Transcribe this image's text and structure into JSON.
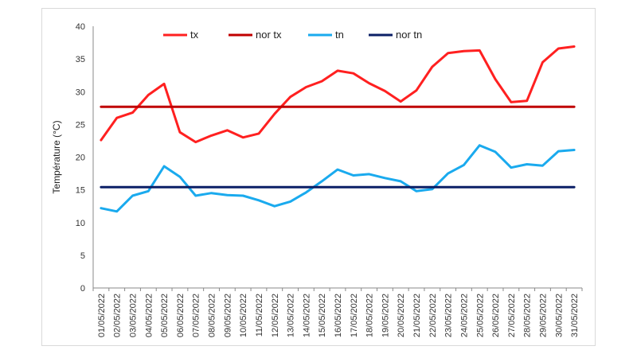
{
  "chart_data": {
    "type": "line",
    "ylabel": "Température (°C)",
    "ylim": [
      0,
      40
    ],
    "yticks": [
      0,
      5,
      10,
      15,
      20,
      25,
      30,
      35,
      40
    ],
    "grid": false,
    "legend_position": "top",
    "categories": [
      "01/05/2022",
      "02/05/2022",
      "03/05/2022",
      "04/05/2022",
      "05/05/2022",
      "06/05/2022",
      "07/05/2022",
      "08/05/2022",
      "09/05/2022",
      "10/05/2022",
      "11/05/2022",
      "12/05/2022",
      "13/05/2022",
      "14/05/2022",
      "15/05/2022",
      "16/05/2022",
      "17/05/2022",
      "18/05/2022",
      "19/05/2022",
      "20/05/2022",
      "21/05/2022",
      "22/05/2022",
      "23/05/2022",
      "24/05/2022",
      "25/05/2022",
      "26/05/2022",
      "27/05/2022",
      "28/05/2022",
      "29/05/2022",
      "30/05/2022",
      "31/05/2022"
    ],
    "series": [
      {
        "name": "tx",
        "color": "#ff2020",
        "values": [
          22.6,
          26.0,
          26.8,
          29.5,
          31.2,
          23.8,
          22.3,
          23.3,
          24.1,
          23.0,
          23.6,
          26.6,
          29.2,
          30.7,
          31.6,
          33.2,
          32.8,
          31.3,
          30.1,
          28.5,
          30.2,
          33.8,
          35.9,
          36.2,
          36.3,
          31.9,
          28.4,
          28.6,
          34.5,
          36.6,
          36.9
        ]
      },
      {
        "name": "nor tx",
        "color": "#c00000",
        "values": [
          27.7,
          27.7,
          27.7,
          27.7,
          27.7,
          27.7,
          27.7,
          27.7,
          27.7,
          27.7,
          27.7,
          27.7,
          27.7,
          27.7,
          27.7,
          27.7,
          27.7,
          27.7,
          27.7,
          27.7,
          27.7,
          27.7,
          27.7,
          27.7,
          27.7,
          27.7,
          27.7,
          27.7,
          27.7,
          27.7,
          27.7
        ]
      },
      {
        "name": "tn",
        "color": "#1aaaee",
        "values": [
          12.2,
          11.7,
          14.1,
          14.8,
          18.6,
          17.0,
          14.1,
          14.5,
          14.2,
          14.1,
          13.4,
          12.5,
          13.2,
          14.6,
          16.3,
          18.1,
          17.2,
          17.4,
          16.8,
          16.3,
          14.8,
          15.1,
          17.5,
          18.8,
          21.8,
          20.8,
          18.4,
          18.9,
          18.7,
          20.9,
          21.1
        ]
      },
      {
        "name": "nor tn",
        "color": "#0b1f66",
        "values": [
          15.4,
          15.4,
          15.4,
          15.4,
          15.4,
          15.4,
          15.4,
          15.4,
          15.4,
          15.4,
          15.4,
          15.4,
          15.4,
          15.4,
          15.4,
          15.4,
          15.4,
          15.4,
          15.4,
          15.4,
          15.4,
          15.4,
          15.4,
          15.4,
          15.4,
          15.4,
          15.4,
          15.4,
          15.4,
          15.4,
          15.4
        ]
      }
    ]
  }
}
